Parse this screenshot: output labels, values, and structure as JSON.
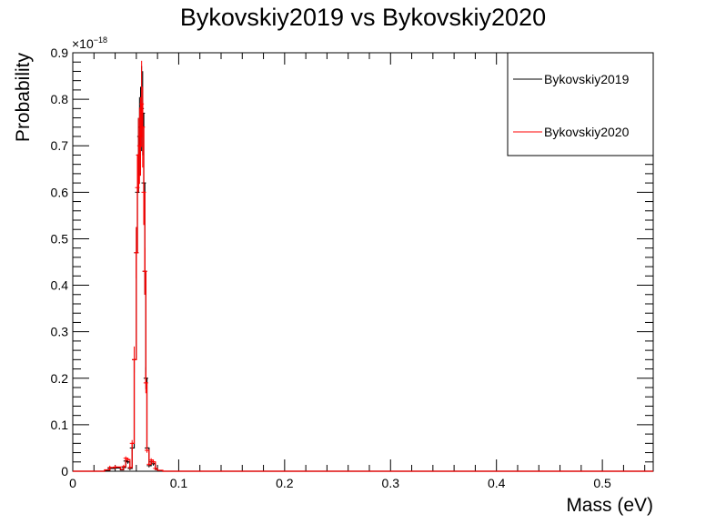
{
  "chart_data": {
    "type": "line",
    "title": "Bykovskiy2019 vs Bykovskiy2020",
    "xlabel": "Mass (eV)",
    "ylabel": "Probability",
    "y_exponent_label": "×10",
    "y_exponent_power": "−18",
    "xlim": [
      0,
      0.548
    ],
    "ylim": [
      0,
      0.9
    ],
    "x_ticks": [
      0,
      0.1,
      0.2,
      0.3,
      0.4,
      0.5
    ],
    "x_tick_labels": [
      "0",
      "0.1",
      "0.2",
      "0.3",
      "0.4",
      "0.5"
    ],
    "y_ticks": [
      0,
      0.1,
      0.2,
      0.3,
      0.4,
      0.5,
      0.6,
      0.7,
      0.8,
      0.9
    ],
    "y_tick_labels": [
      "0",
      "0.1",
      "0.2",
      "0.3",
      "0.4",
      "0.5",
      "0.6",
      "0.7",
      "0.8",
      "0.9"
    ],
    "grid": false,
    "legend_position": "top-right",
    "series": [
      {
        "name": "Bykovskiy2019",
        "color": "#000000",
        "x": [
          0,
          0.025,
          0.03,
          0.035,
          0.04,
          0.045,
          0.048,
          0.05,
          0.052,
          0.054,
          0.056,
          0.058,
          0.06,
          0.061,
          0.062,
          0.063,
          0.064,
          0.065,
          0.066,
          0.067,
          0.068,
          0.069,
          0.07,
          0.072,
          0.074,
          0.076,
          0.078,
          0.08,
          0.085,
          0.09,
          0.548
        ],
        "y": [
          0,
          0,
          0.002,
          0.006,
          0.007,
          0.003,
          0.008,
          0.022,
          0.02,
          0.006,
          0.05,
          0.24,
          0.47,
          0.6,
          0.68,
          0.72,
          0.74,
          0.78,
          0.77,
          0.62,
          0.43,
          0.2,
          0.05,
          0.012,
          0.02,
          0.016,
          0.004,
          0.0015,
          0,
          0,
          0
        ]
      },
      {
        "name": "Bykovskiy2020",
        "color": "#ff0000",
        "x": [
          0,
          0.025,
          0.03,
          0.035,
          0.04,
          0.045,
          0.048,
          0.05,
          0.052,
          0.054,
          0.056,
          0.058,
          0.06,
          0.061,
          0.062,
          0.063,
          0.064,
          0.065,
          0.066,
          0.067,
          0.068,
          0.069,
          0.07,
          0.072,
          0.074,
          0.076,
          0.078,
          0.08,
          0.085,
          0.09,
          0.548
        ],
        "y": [
          0,
          0,
          0.003,
          0.008,
          0.009,
          0.004,
          0.01,
          0.028,
          0.025,
          0.008,
          0.06,
          0.24,
          0.47,
          0.61,
          0.68,
          0.7,
          0.72,
          0.79,
          0.74,
          0.6,
          0.43,
          0.19,
          0.045,
          0.015,
          0.024,
          0.02,
          0.006,
          0.002,
          0,
          0,
          0
        ]
      }
    ]
  }
}
